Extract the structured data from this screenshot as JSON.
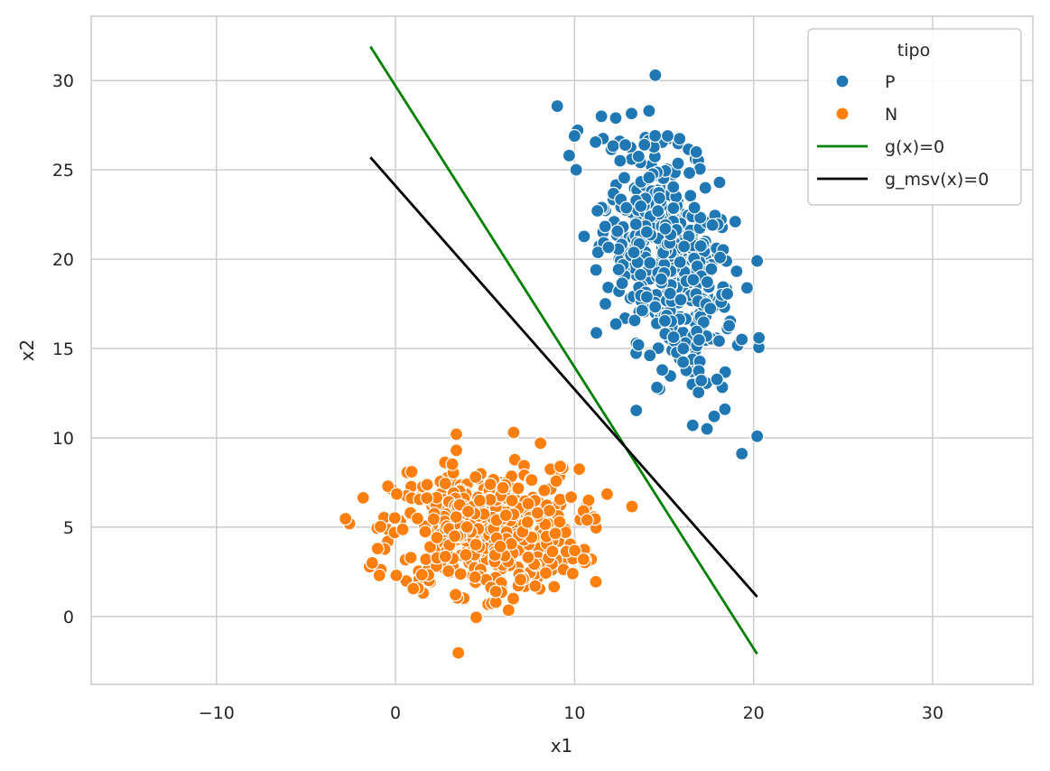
{
  "chart_data": {
    "type": "scatter",
    "xlabel": "x1",
    "ylabel": "x2",
    "xlim": [
      -17,
      35.6
    ],
    "ylim": [
      -3.8,
      33.6
    ],
    "xticks": [
      -10,
      0,
      10,
      20,
      30
    ],
    "yticks": [
      0,
      5,
      10,
      15,
      20,
      25,
      30
    ],
    "xtick_labels": [
      "−10",
      "0",
      "10",
      "20",
      "30"
    ],
    "ytick_labels": [
      "0",
      "5",
      "10",
      "15",
      "20",
      "25",
      "30"
    ],
    "grid": true,
    "legend": {
      "title": "tipo",
      "placement": "top-right",
      "entries": [
        {
          "label": "P",
          "kind": "marker",
          "color": "#1f77b4"
        },
        {
          "label": "N",
          "kind": "marker",
          "color": "#ff7f0e"
        },
        {
          "label": "g(x)=0",
          "kind": "line",
          "color": "#008000"
        },
        {
          "label": "g_msv(x)=0",
          "kind": "line",
          "color": "#000000"
        }
      ]
    },
    "series": [
      {
        "name": "P",
        "kind": "scatter",
        "color": "#1f77b4",
        "cluster_center": [
          15.3,
          20.0
        ],
        "cluster_spread": [
          1.8,
          3.3
        ],
        "cluster_correlation": -0.45,
        "n_points": 500,
        "outliers": [
          [
            11.5,
            28.0
          ],
          [
            12.3,
            27.9
          ],
          [
            10.0,
            26.9
          ],
          [
            9.7,
            25.8
          ],
          [
            15.2,
            26.9
          ],
          [
            16.8,
            26.0
          ],
          [
            18.1,
            24.3
          ],
          [
            11.2,
            19.4
          ],
          [
            20.2,
            19.9
          ],
          [
            20.3,
            15.6
          ],
          [
            16.6,
            10.7
          ],
          [
            17.4,
            10.5
          ],
          [
            18.4,
            11.6
          ],
          [
            17.8,
            11.2
          ],
          [
            14.9,
            13.8
          ]
        ]
      },
      {
        "name": "N",
        "kind": "scatter",
        "color": "#ff7f0e",
        "cluster_center": [
          5.0,
          4.8
        ],
        "cluster_spread": [
          2.6,
          1.7
        ],
        "cluster_correlation": 0.0,
        "n_points": 500,
        "outliers": [
          [
            3.4,
            10.2
          ],
          [
            6.6,
            10.3
          ],
          [
            8.1,
            9.7
          ],
          [
            3.4,
            9.3
          ],
          [
            0.9,
            8.1
          ],
          [
            -1.3,
            3.0
          ],
          [
            -0.9,
            2.3
          ],
          [
            -1.0,
            3.8
          ],
          [
            5.6,
            0.8
          ],
          [
            5.6,
            1.4
          ],
          [
            9.9,
            2.4
          ],
          [
            10.5,
            3.2
          ],
          [
            10.5,
            5.9
          ],
          [
            10.7,
            5.4
          ],
          [
            9.2,
            8.4
          ]
        ]
      },
      {
        "name": "g(x)=0",
        "kind": "line",
        "color": "#008000",
        "x": [
          -1.4,
          20.2
        ],
        "y": [
          31.9,
          -2.1
        ]
      },
      {
        "name": "g_msv(x)=0",
        "kind": "line",
        "color": "#000000",
        "x": [
          -1.4,
          20.2
        ],
        "y": [
          25.7,
          1.1
        ]
      }
    ]
  }
}
